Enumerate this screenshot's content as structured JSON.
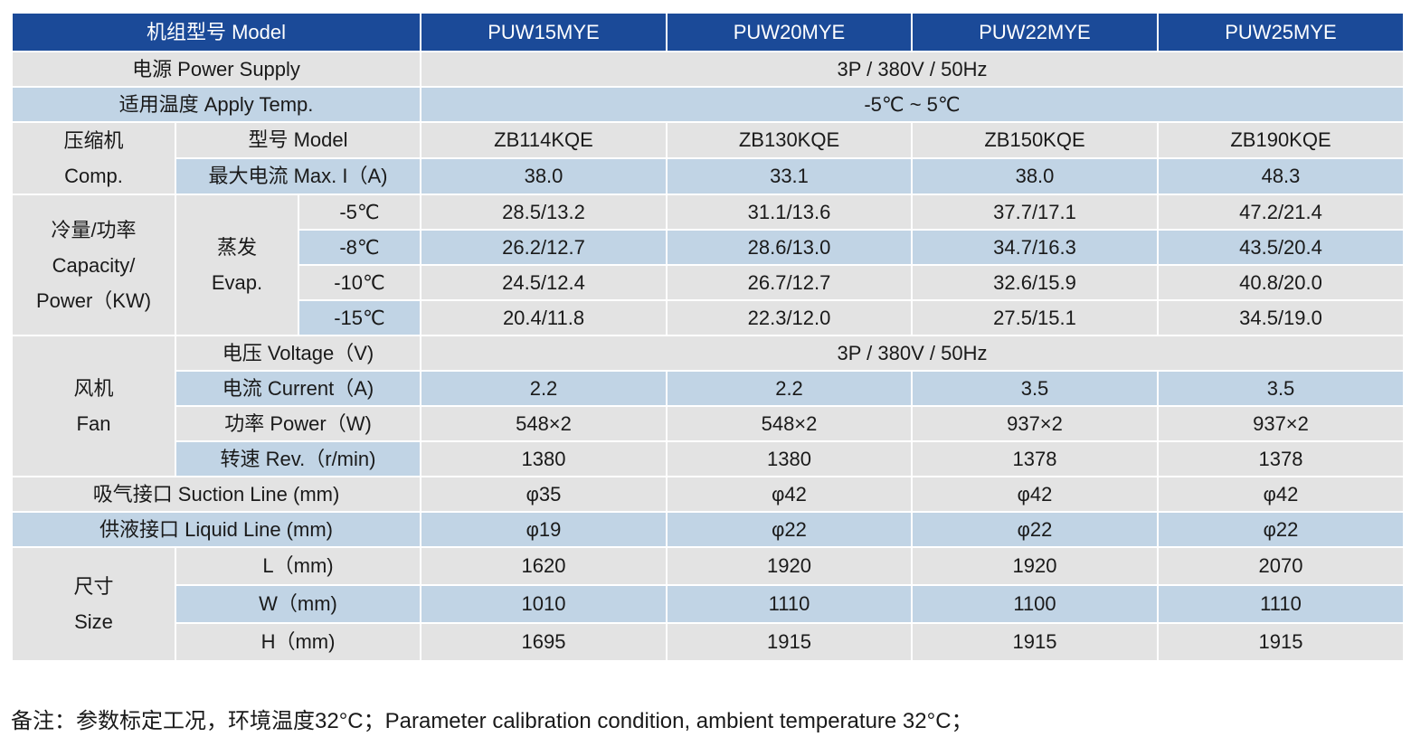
{
  "header": {
    "model_label": "机组型号 Model",
    "models": [
      "PUW15MYE",
      "PUW20MYE",
      "PUW22MYE",
      "PUW25MYE"
    ]
  },
  "power_supply": {
    "label": "电源 Power Supply",
    "value": "3P / 380V / 50Hz"
  },
  "apply_temp": {
    "label": "适用温度 Apply Temp.",
    "value": "-5℃ ~ 5℃"
  },
  "compressor": {
    "group_line1": "压缩机",
    "group_line2": "Comp.",
    "model_label": "型号 Model",
    "models": [
      "ZB114KQE",
      "ZB130KQE",
      "ZB150KQE",
      "ZB190KQE"
    ],
    "max_current_label": "最大电流 Max. I（A)",
    "max_current": [
      "38.0",
      "33.1",
      "38.0",
      "48.3"
    ]
  },
  "capacity": {
    "group_line1": "冷量/功率",
    "group_line2": "Capacity/",
    "group_line3": "Power（KW)",
    "evap_line1": "蒸发",
    "evap_line2": "Evap.",
    "rows": [
      {
        "temp": "-5℃",
        "values": [
          "28.5/13.2",
          "31.1/13.6",
          "37.7/17.1",
          "47.2/21.4"
        ]
      },
      {
        "temp": "-8℃",
        "values": [
          "26.2/12.7",
          "28.6/13.0",
          "34.7/16.3",
          "43.5/20.4"
        ]
      },
      {
        "temp": "-10℃",
        "values": [
          "24.5/12.4",
          "26.7/12.7",
          "32.6/15.9",
          "40.8/20.0"
        ]
      },
      {
        "temp": "-15℃",
        "values": [
          "20.4/11.8",
          "22.3/12.0",
          "27.5/15.1",
          "34.5/19.0"
        ]
      }
    ]
  },
  "fan": {
    "group_line1": "风机",
    "group_line2": "Fan",
    "voltage_label": "电压 Voltage（V)",
    "voltage": "3P / 380V / 50Hz",
    "current_label": "电流 Current（A)",
    "current": [
      "2.2",
      "2.2",
      "3.5",
      "3.5"
    ],
    "power_label": "功率 Power（W)",
    "power": [
      "548×2",
      "548×2",
      "937×2",
      "937×2"
    ],
    "rev_label": "转速 Rev.（r/min)",
    "rev": [
      "1380",
      "1380",
      "1378",
      "1378"
    ]
  },
  "suction": {
    "label": "吸气接口 Suction Line (mm)",
    "values": [
      "φ35",
      "φ42",
      "φ42",
      "φ42"
    ]
  },
  "liquid": {
    "label": "供液接口 Liquid Line (mm)",
    "values": [
      "φ19",
      "φ22",
      "φ22",
      "φ22"
    ]
  },
  "size": {
    "group_line1": "尺寸",
    "group_line2": "Size",
    "l_label": "L（mm)",
    "l": [
      "1620",
      "1920",
      "1920",
      "2070"
    ],
    "w_label": "W（mm)",
    "w": [
      "1010",
      "1110",
      "1100",
      "1110"
    ],
    "h_label": "H（mm)",
    "h": [
      "1695",
      "1915",
      "1915",
      "1915"
    ]
  },
  "footnote": "备注：参数标定工况，环境温度32°C；Parameter calibration condition, ambient temperature 32°C；",
  "colors": {
    "header_bg": "#1b4a98",
    "gray_row": "#e3e3e3",
    "blue_row": "#c1d4e5"
  }
}
